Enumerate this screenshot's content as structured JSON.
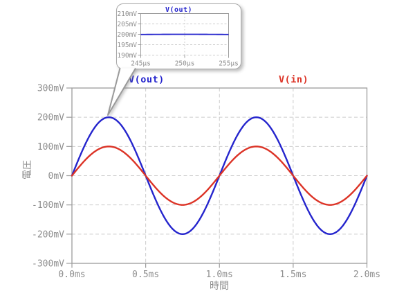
{
  "window": {
    "background": "#ffffff"
  },
  "colors": {
    "axis": "#9c9c9c",
    "grid": "#cbcbcb",
    "tick_text": "#8e8e8e",
    "callout_border": "#a8a8a8",
    "callout_fill": "#ffffff"
  },
  "chart_data": [
    {
      "id": "main-plot",
      "type": "line",
      "title": "",
      "xlabel": "時間",
      "ylabel": "電圧",
      "xlim_ms": [
        0,
        2
      ],
      "ylim_mV": [
        -300,
        300
      ],
      "grid": "dashed",
      "x_ticks": [
        {
          "label": "0.0ms",
          "ms": 0.0
        },
        {
          "label": "0.5ms",
          "ms": 0.5
        },
        {
          "label": "1.0ms",
          "ms": 1.0
        },
        {
          "label": "1.5ms",
          "ms": 1.5
        },
        {
          "label": "2.0ms",
          "ms": 2.0
        }
      ],
      "y_ticks": [
        {
          "label": "300mV",
          "mV": 300
        },
        {
          "label": "200mV",
          "mV": 200
        },
        {
          "label": "100mV",
          "mV": 100
        },
        {
          "label": "0mV",
          "mV": 0
        },
        {
          "label": "-100mV",
          "mV": -100
        },
        {
          "label": "-200mV",
          "mV": -200
        },
        {
          "label": "-300mV",
          "mV": -300
        }
      ],
      "legend_position": "top",
      "legend": [
        {
          "label": "V(out)",
          "color": "#2525cd"
        },
        {
          "label": "V(in)",
          "color": "#dc3326"
        }
      ],
      "series": [
        {
          "name": "V(out)",
          "color": "#2525cd",
          "waveform": "sine",
          "amplitude_mV": 200,
          "period_ms": 1,
          "phase_deg": 0,
          "offset_mV": 0
        },
        {
          "name": "V(in)",
          "color": "#dc3326",
          "waveform": "sine",
          "amplitude_mV": 100,
          "period_ms": 1,
          "phase_deg": 0,
          "offset_mV": 0
        }
      ]
    },
    {
      "id": "inset-zoom-plot",
      "type": "line",
      "title": "V(out)",
      "xlim_us": [
        245,
        255
      ],
      "ylim_mV": [
        190,
        210
      ],
      "grid": "dashed",
      "x_ticks": [
        {
          "label": "245µs",
          "us": 245
        },
        {
          "label": "250µs",
          "us": 250
        },
        {
          "label": "255µs",
          "us": 255
        }
      ],
      "y_ticks": [
        {
          "label": "210mV",
          "mV": 210
        },
        {
          "label": "205mV",
          "mV": 205
        },
        {
          "label": "200mV",
          "mV": 200
        },
        {
          "label": "195mV",
          "mV": 195
        },
        {
          "label": "190mV",
          "mV": 190
        }
      ],
      "series": [
        {
          "name": "V(out)",
          "color": "#2525cd",
          "waveform": "sine",
          "amplitude_mV": 200,
          "period_ms": 1,
          "phase_deg": 0,
          "offset_mV": 0,
          "reading_mV": 200
        }
      ]
    }
  ]
}
